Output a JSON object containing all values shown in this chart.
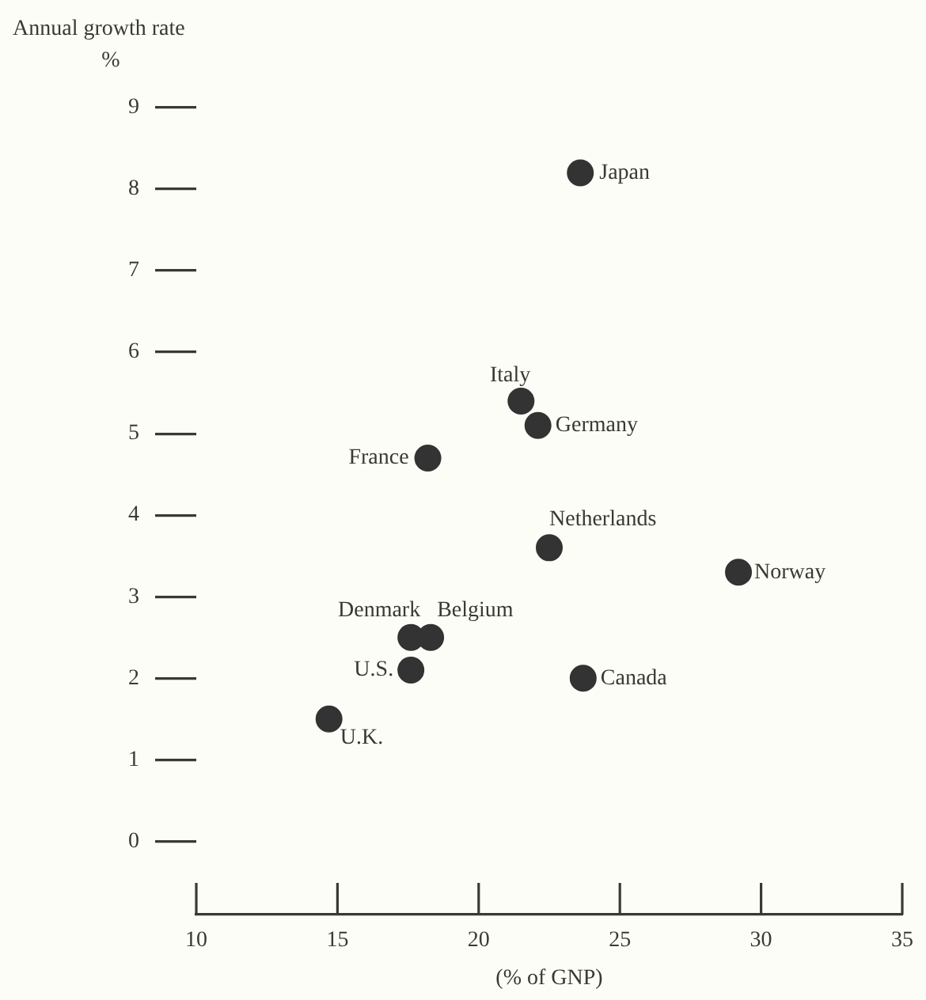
{
  "chart_data": {
    "type": "scatter",
    "ylabel": "Annual growth rate\n%",
    "xlabel": "(% of GNP)",
    "x": [
      23.6,
      21.5,
      22.1,
      18.2,
      22.5,
      29.2,
      17.6,
      18.3,
      17.6,
      23.7,
      14.7
    ],
    "values": [
      8.2,
      5.4,
      5.1,
      4.7,
      3.6,
      3.3,
      2.5,
      2.5,
      2.1,
      2.0,
      1.5
    ],
    "color": "#333333",
    "marker": "circle",
    "xlim": [
      10,
      35
    ],
    "xticks": [
      10,
      15,
      20,
      25,
      30,
      35
    ],
    "ylim": [
      -0.9,
      9
    ],
    "yticks": [
      0,
      1,
      2,
      3,
      4,
      5,
      6,
      7,
      8,
      9
    ],
    "grid": false,
    "legend": false,
    "annotations": [
      {
        "text": "Japan",
        "x": 23.6,
        "y": 8.2
      },
      {
        "text": "Italy",
        "x": 21.5,
        "y": 5.4
      },
      {
        "text": "Germany",
        "x": 22.1,
        "y": 5.1
      },
      {
        "text": "France",
        "x": 18.2,
        "y": 4.7
      },
      {
        "text": "Netherlands",
        "x": 22.5,
        "y": 3.6
      },
      {
        "text": "Norway",
        "x": 29.2,
        "y": 3.3
      },
      {
        "text": "Denmark",
        "x": 17.6,
        "y": 2.5
      },
      {
        "text": "Belgium",
        "x": 18.3,
        "y": 2.5
      },
      {
        "text": "U.S.",
        "x": 17.6,
        "y": 2.1
      },
      {
        "text": "Canada",
        "x": 23.7,
        "y": 2.0
      },
      {
        "text": "U.K.",
        "x": 14.7,
        "y": 1.5
      }
    ]
  }
}
